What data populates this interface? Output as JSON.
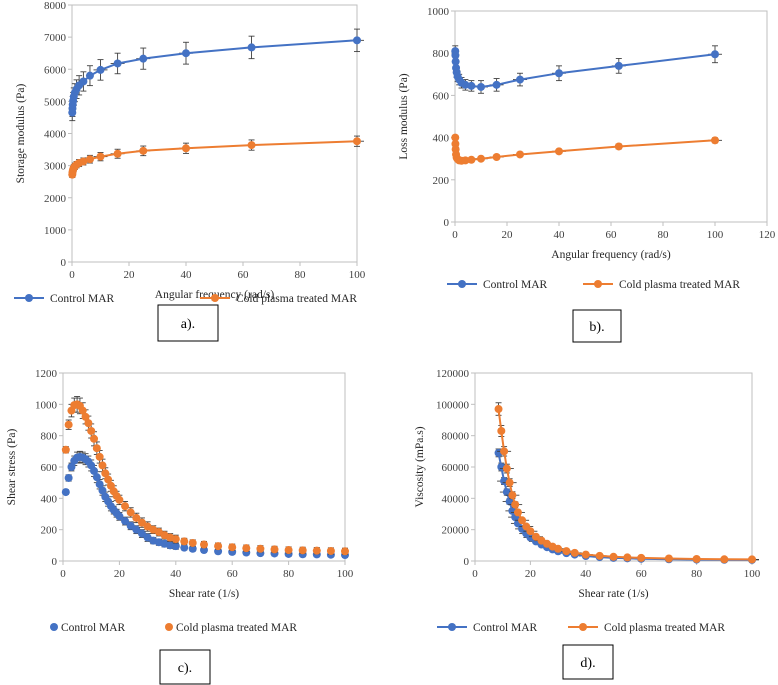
{
  "colors": {
    "control": "#4472C4",
    "plasma": "#ED7D31",
    "axis": "#BFBFBF",
    "errbar": "#404040"
  },
  "chart_data": [
    {
      "id": "a",
      "type": "line",
      "panel_label": "a).",
      "xlabel": "Angular frequency (rad/s)",
      "ylabel": "Storage modulus (Pa)",
      "xlim": [
        0,
        100
      ],
      "ylim": [
        0,
        8000
      ],
      "xticks": [
        "0",
        "20",
        "40",
        "60",
        "80",
        "100"
      ],
      "yticks": [
        "0",
        "1000",
        "2000",
        "3000",
        "4000",
        "5000",
        "6000",
        "7000",
        "8000"
      ],
      "legend": [
        "Control MAR",
        "Cold plasma treated MAR"
      ],
      "series": [
        {
          "name": "Control MAR",
          "x": [
            0.1,
            0.16,
            0.25,
            0.4,
            0.63,
            1,
            1.6,
            2.5,
            4,
            6.3,
            10,
            16,
            25,
            40,
            63,
            100
          ],
          "y": [
            4650,
            4780,
            4900,
            5020,
            5150,
            5270,
            5380,
            5500,
            5620,
            5800,
            5980,
            6180,
            6330,
            6500,
            6680,
            6900
          ],
          "err": [
            250,
            250,
            250,
            260,
            270,
            280,
            290,
            300,
            300,
            310,
            320,
            320,
            330,
            340,
            350,
            350
          ]
        },
        {
          "name": "Cold plasma treated MAR",
          "x": [
            0.1,
            0.16,
            0.25,
            0.4,
            0.63,
            1,
            1.6,
            2.5,
            4,
            6.3,
            10,
            16,
            25,
            40,
            63,
            100
          ],
          "y": [
            2720,
            2780,
            2830,
            2880,
            2930,
            2980,
            3030,
            3080,
            3130,
            3200,
            3280,
            3370,
            3460,
            3540,
            3640,
            3760
          ],
          "err": [
            90,
            90,
            90,
            100,
            100,
            100,
            100,
            110,
            110,
            120,
            130,
            140,
            150,
            160,
            160,
            160
          ]
        }
      ]
    },
    {
      "id": "b",
      "type": "line",
      "panel_label": "b).",
      "xlabel": "Angular frequency (rad/s)",
      "ylabel": "Loss modulus (Pa)",
      "xlim": [
        0,
        120
      ],
      "ylim": [
        0,
        1000
      ],
      "xticks": [
        "0",
        "20",
        "40",
        "60",
        "80",
        "100",
        "120"
      ],
      "yticks": [
        "0",
        "200",
        "400",
        "600",
        "800",
        "1000"
      ],
      "legend": [
        "Control MAR",
        "Cold plasma treated MAR"
      ],
      "series": [
        {
          "name": "Control MAR",
          "x": [
            0.1,
            0.16,
            0.25,
            0.4,
            0.63,
            1,
            1.6,
            2.5,
            4,
            6.3,
            10,
            16,
            25,
            40,
            63,
            100
          ],
          "y": [
            810,
            790,
            760,
            730,
            710,
            690,
            675,
            660,
            650,
            645,
            640,
            650,
            675,
            705,
            740,
            795
          ],
          "err": [
            25,
            25,
            25,
            25,
            25,
            25,
            25,
            25,
            25,
            25,
            30,
            30,
            30,
            35,
            35,
            40
          ]
        },
        {
          "name": "Cold plasma treated MAR",
          "x": [
            0.1,
            0.16,
            0.25,
            0.4,
            0.63,
            1,
            1.6,
            2.5,
            4,
            6.3,
            10,
            16,
            25,
            40,
            63,
            100
          ],
          "y": [
            400,
            370,
            345,
            320,
            305,
            298,
            292,
            290,
            292,
            295,
            300,
            308,
            320,
            335,
            358,
            387
          ],
          "err": [
            10,
            10,
            10,
            10,
            10,
            10,
            10,
            10,
            10,
            10,
            10,
            10,
            10,
            10,
            12,
            12
          ]
        }
      ]
    },
    {
      "id": "c",
      "type": "scatter",
      "panel_label": "c).",
      "xlabel": "Shear rate (1/s)",
      "ylabel": "Shear stress (Pa)",
      "xlim": [
        0,
        100
      ],
      "ylim": [
        0,
        1200
      ],
      "xticks": [
        "0",
        "20",
        "40",
        "60",
        "80",
        "100"
      ],
      "yticks": [
        "0",
        "200",
        "400",
        "600",
        "800",
        "1000",
        "1200"
      ],
      "legend": [
        "Control MAR",
        "Cold plasma treated MAR"
      ],
      "series": [
        {
          "name": "Control MAR",
          "x": [
            1,
            2,
            3,
            4,
            5,
            6,
            7,
            8,
            9,
            10,
            11,
            12,
            13,
            14,
            15,
            16,
            17,
            18,
            19,
            20,
            22,
            24,
            26,
            28,
            30,
            32,
            34,
            36,
            38,
            40,
            43,
            46,
            50,
            55,
            60,
            65,
            70,
            75,
            80,
            85,
            90,
            95,
            100
          ],
          "y": [
            440,
            530,
            600,
            640,
            660,
            665,
            660,
            650,
            635,
            610,
            575,
            535,
            490,
            450,
            410,
            380,
            350,
            325,
            305,
            285,
            255,
            225,
            200,
            175,
            150,
            130,
            120,
            110,
            100,
            95,
            85,
            78,
            70,
            62,
            58,
            54,
            50,
            48,
            45,
            43,
            42,
            40,
            38
          ],
          "err": [
            15,
            20,
            25,
            30,
            35,
            35,
            35,
            35,
            35,
            35,
            35,
            35,
            30,
            30,
            30,
            30,
            30,
            25,
            25,
            25,
            25,
            25,
            25,
            25,
            25,
            20,
            20,
            20,
            20,
            20,
            15,
            15,
            15,
            15,
            15,
            15,
            15,
            15,
            15,
            15,
            15,
            15,
            15
          ]
        },
        {
          "name": "Cold plasma treated MAR",
          "x": [
            1,
            2,
            3,
            4,
            5,
            6,
            7,
            8,
            9,
            10,
            11,
            12,
            13,
            14,
            15,
            16,
            17,
            18,
            19,
            20,
            22,
            24,
            26,
            28,
            30,
            32,
            34,
            36,
            38,
            40,
            43,
            46,
            50,
            55,
            60,
            65,
            70,
            75,
            80,
            85,
            90,
            95,
            100
          ],
          "y": [
            710,
            870,
            960,
            995,
            1000,
            990,
            960,
            920,
            880,
            830,
            780,
            720,
            665,
            610,
            560,
            520,
            480,
            445,
            415,
            390,
            350,
            310,
            275,
            245,
            220,
            200,
            185,
            165,
            150,
            140,
            125,
            115,
            105,
            95,
            88,
            82,
            78,
            74,
            70,
            68,
            66,
            64,
            62
          ],
          "err": [
            20,
            30,
            40,
            45,
            50,
            50,
            50,
            45,
            45,
            45,
            45,
            40,
            40,
            40,
            35,
            35,
            35,
            35,
            30,
            30,
            30,
            30,
            30,
            30,
            30,
            25,
            25,
            25,
            25,
            25,
            20,
            20,
            20,
            20,
            20,
            20,
            20,
            20,
            20,
            20,
            20,
            20,
            20
          ]
        }
      ]
    },
    {
      "id": "d",
      "type": "line",
      "panel_label": "d).",
      "xlabel": "Shear rate (1/s)",
      "ylabel": "Viscosity (mPa.s)",
      "xlim": [
        0,
        100
      ],
      "ylim": [
        0,
        120000
      ],
      "xticks": [
        "0",
        "20",
        "40",
        "60",
        "80",
        "100"
      ],
      "yticks": [
        "0",
        "20000",
        "40000",
        "60000",
        "80000",
        "100000",
        "120000"
      ],
      "legend": [
        "Control MAR",
        "Cold plasma treated MAR"
      ],
      "series": [
        {
          "name": "Control MAR",
          "x": [
            8.5,
            9.5,
            10.5,
            11.5,
            12.5,
            13.5,
            14.5,
            15.5,
            17,
            18.5,
            20,
            22,
            24,
            26,
            28,
            30,
            33,
            36,
            40,
            45,
            50,
            55,
            60,
            70,
            80,
            90,
            100
          ],
          "y": [
            69000,
            60000,
            51000,
            44000,
            38000,
            32000,
            28000,
            24000,
            20500,
            17500,
            15000,
            12500,
            10500,
            8800,
            7400,
            6200,
            5000,
            4100,
            3200,
            2500,
            2000,
            1700,
            1400,
            1100,
            900,
            800,
            700
          ],
          "err": [
            2500,
            2500,
            2200,
            2000,
            1800,
            1500,
            1300,
            1200,
            1000,
            900,
            800,
            700,
            600,
            500,
            450,
            400,
            350,
            300,
            250,
            200,
            200,
            150,
            150,
            150,
            100,
            100,
            100
          ]
        },
        {
          "name": "Cold plasma treated MAR",
          "x": [
            8.5,
            9.5,
            10.5,
            11.5,
            12.5,
            13.5,
            14.5,
            15.5,
            17,
            18.5,
            20,
            22,
            24,
            26,
            28,
            30,
            33,
            36,
            40,
            45,
            50,
            55,
            60,
            70,
            80,
            90,
            100
          ],
          "y": [
            97000,
            83000,
            70000,
            59000,
            50000,
            42000,
            36000,
            31000,
            26000,
            22000,
            19000,
            15500,
            13000,
            11000,
            9200,
            7800,
            6300,
            5200,
            4100,
            3300,
            2700,
            2300,
            2000,
            1600,
            1300,
            1100,
            1000
          ],
          "err": [
            4000,
            3500,
            3000,
            2800,
            2500,
            2200,
            1800,
            1600,
            1400,
            1200,
            1000,
            900,
            800,
            700,
            600,
            500,
            450,
            400,
            350,
            300,
            250,
            200,
            200,
            150,
            150,
            150,
            150
          ]
        }
      ]
    }
  ]
}
